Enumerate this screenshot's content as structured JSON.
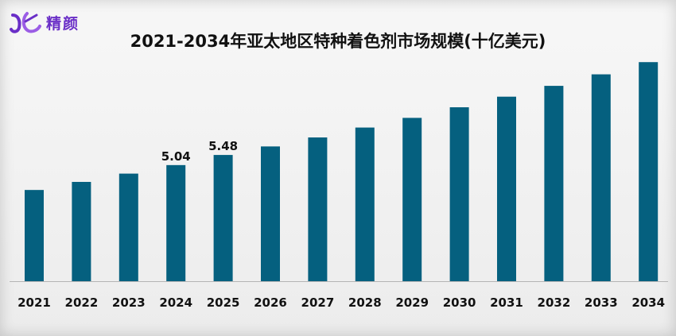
{
  "brand": {
    "logo_text": "精颜",
    "accent_color": "#6a2fc7"
  },
  "chart_data": {
    "type": "bar",
    "title": "2021-2034年亚太地区特种着色剂市场规模(十亿美元)",
    "xlabel": "",
    "ylabel": "",
    "categories": [
      "2021",
      "2022",
      "2023",
      "2024",
      "2025",
      "2026",
      "2027",
      "2028",
      "2029",
      "2030",
      "2031",
      "2032",
      "2033",
      "2034"
    ],
    "values": [
      3.96,
      4.31,
      4.67,
      5.04,
      5.48,
      5.85,
      6.24,
      6.67,
      7.09,
      7.55,
      8.01,
      8.48,
      8.98,
      9.51
    ],
    "data_labels": [
      null,
      null,
      null,
      "5.04",
      "5.48",
      null,
      null,
      null,
      null,
      null,
      null,
      null,
      null,
      null
    ],
    "ylim": [
      0,
      10
    ],
    "bar_color": "#05607f",
    "grid": false,
    "legend": "none"
  }
}
